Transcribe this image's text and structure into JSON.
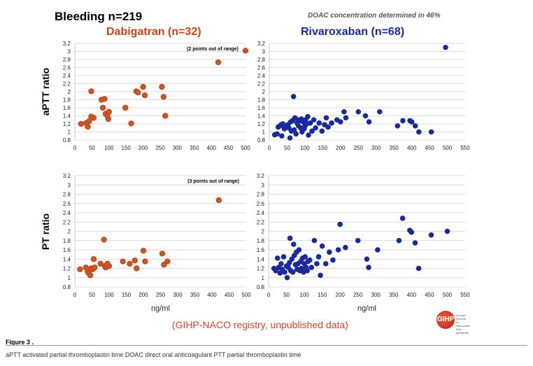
{
  "header": {
    "title": "Bleeding n=219",
    "note": "DOAC concentration determined in 46%",
    "left_title": "Dabigatran (n=32)",
    "right_title": "Rivaroxaban (n=68)"
  },
  "footer": {
    "registry": "(GIHP-NACO registry, unpublished data)",
    "figure_label": "Figure 3 .",
    "caption": "aPTT activated partial thromboplastin time DOAC direct oral anticoagulant PTT partial thromboplastin time",
    "logo_text": "GIHP",
    "logo_subtext": "Groupe d'Intérêt en Hémostase Péri-opératoire"
  },
  "colors": {
    "dabigatran": "#d9421e",
    "dabigatran_center": "#7a8a2a",
    "rivaroxaban": "#1a2a9c"
  },
  "chart_data": [
    {
      "type": "scatter",
      "panel": "dabigatran-aptt",
      "ylabel": "aPTT ratio",
      "xlabel": "",
      "xlim": [
        0,
        500
      ],
      "ylim": [
        0.8,
        3.2
      ],
      "xticks": [
        "0",
        "50",
        "100",
        "150",
        "200",
        "250",
        "300",
        "350",
        "400",
        "450",
        "500"
      ],
      "yticks": [
        "0.8",
        "1",
        "1.2",
        "1.4",
        "1.6",
        "1.8",
        "2",
        "2.2",
        "2.4",
        "2.6",
        "2.8",
        "3",
        "3.2"
      ],
      "annotation": "(2 points out of range)",
      "x": [
        18,
        33,
        38,
        42,
        48,
        55,
        48,
        78,
        82,
        87,
        90,
        95,
        98,
        100,
        148,
        165,
        180,
        185,
        200,
        205,
        255,
        260,
        265,
        420,
        500
      ],
      "y": [
        1.2,
        1.22,
        1.13,
        1.27,
        2.01,
        1.35,
        1.38,
        1.8,
        1.6,
        1.82,
        1.45,
        1.4,
        1.32,
        1.5,
        1.6,
        1.21,
        2.01,
        1.98,
        2.12,
        1.91,
        2.12,
        1.87,
        1.4,
        2.73,
        3.02
      ]
    },
    {
      "type": "scatter",
      "panel": "rivaroxaban-aptt",
      "ylabel": "",
      "xlabel": "",
      "xlim": [
        0,
        550
      ],
      "ylim": [
        0.8,
        3.2
      ],
      "xticks": [
        "0",
        "50",
        "100",
        "150",
        "200",
        "250",
        "300",
        "350",
        "400",
        "450",
        "500",
        "550"
      ],
      "yticks": [
        "0.8",
        "1",
        "1.2",
        "1.4",
        "1.6",
        "1.8",
        "2",
        "2.2",
        "2.4",
        "2.6",
        "2.8",
        "3",
        "3.2"
      ],
      "x": [
        15,
        22,
        25,
        30,
        33,
        35,
        38,
        42,
        48,
        52,
        55,
        58,
        60,
        62,
        65,
        68,
        70,
        72,
        75,
        78,
        80,
        82,
        85,
        88,
        90,
        92,
        95,
        98,
        100,
        102,
        105,
        108,
        110,
        115,
        120,
        125,
        130,
        140,
        148,
        155,
        160,
        165,
        175,
        190,
        200,
        210,
        215,
        250,
        270,
        280,
        310,
        360,
        375,
        395,
        400,
        410,
        420,
        455,
        495
      ],
      "y": [
        0.93,
        0.95,
        1.12,
        1.15,
        1.18,
        0.9,
        1.2,
        1.08,
        1.12,
        1.18,
        1.1,
        0.85,
        1.25,
        1.02,
        1.28,
        1.88,
        1.05,
        1.35,
        0.95,
        1.22,
        1.3,
        1.15,
        1.28,
        1.1,
        1.32,
        1.0,
        1.25,
        1.08,
        1.15,
        1.3,
        1.2,
        1.38,
        0.92,
        1.22,
        1.02,
        1.3,
        1.1,
        1.22,
        1.02,
        1.18,
        1.35,
        1.12,
        1.22,
        1.3,
        1.25,
        1.5,
        1.35,
        1.5,
        1.4,
        1.25,
        1.5,
        1.15,
        1.28,
        1.28,
        1.25,
        1.15,
        1.0,
        1.0,
        3.1
      ]
    },
    {
      "type": "scatter",
      "panel": "dabigatran-pt",
      "ylabel": "PT ratio",
      "xlabel": "ng/ml",
      "xlim": [
        0,
        500
      ],
      "ylim": [
        0.8,
        3.2
      ],
      "xticks": [
        "0",
        "50",
        "100",
        "150",
        "200",
        "250",
        "300",
        "350",
        "400",
        "450",
        "500"
      ],
      "yticks": [
        "0.8",
        "1",
        "1.2",
        "1.4",
        "1.6",
        "1.8",
        "2",
        "2.2",
        "2.4",
        "2.6",
        "2.8",
        "3",
        "3.2"
      ],
      "annotation": "(3 points out of range)",
      "x": [
        15,
        32,
        37,
        40,
        45,
        48,
        52,
        55,
        58,
        75,
        85,
        88,
        90,
        95,
        100,
        140,
        160,
        175,
        180,
        200,
        205,
        255,
        260,
        270,
        420
      ],
      "y": [
        1.18,
        1.22,
        1.14,
        1.1,
        1.05,
        1.2,
        1.18,
        1.4,
        1.22,
        1.3,
        1.82,
        1.25,
        1.22,
        1.3,
        1.25,
        1.35,
        1.3,
        1.37,
        1.2,
        1.58,
        1.35,
        1.52,
        1.28,
        1.35,
        2.67
      ]
    },
    {
      "type": "scatter",
      "panel": "rivaroxaban-pt",
      "ylabel": "",
      "xlabel": "ng/ml",
      "xlim": [
        0,
        550
      ],
      "ylim": [
        0.8,
        3.2
      ],
      "xticks": [
        "0",
        "50",
        "100",
        "150",
        "200",
        "250",
        "300",
        "350",
        "400",
        "450",
        "500",
        "550"
      ],
      "yticks": [
        "0.8",
        "1",
        "1.2",
        "1.4",
        "1.6",
        "1.8",
        "2",
        "2.2",
        "2.4",
        "2.6",
        "2.8",
        "3",
        "3.2"
      ],
      "x": [
        15,
        20,
        25,
        28,
        32,
        35,
        38,
        42,
        45,
        50,
        52,
        55,
        58,
        60,
        62,
        65,
        68,
        70,
        72,
        75,
        78,
        80,
        82,
        85,
        88,
        90,
        92,
        95,
        98,
        100,
        102,
        105,
        108,
        110,
        115,
        120,
        128,
        135,
        140,
        145,
        150,
        160,
        170,
        180,
        195,
        200,
        215,
        250,
        275,
        280,
        305,
        365,
        375,
        395,
        400,
        410,
        420,
        455,
        500
      ],
      "y": [
        1.2,
        1.15,
        1.42,
        1.22,
        1.1,
        1.3,
        1.18,
        1.45,
        1.12,
        1.25,
        1.0,
        1.22,
        1.32,
        1.85,
        1.15,
        1.4,
        1.12,
        1.72,
        1.48,
        1.28,
        1.55,
        1.18,
        1.3,
        1.6,
        1.15,
        1.35,
        1.2,
        1.42,
        1.12,
        1.3,
        1.45,
        1.22,
        1.15,
        1.35,
        1.38,
        1.22,
        1.8,
        1.3,
        1.45,
        1.05,
        1.68,
        1.3,
        1.55,
        1.38,
        1.6,
        2.15,
        1.65,
        1.8,
        1.4,
        1.22,
        1.6,
        1.8,
        2.28,
        2.02,
        1.98,
        1.75,
        1.2,
        1.92,
        2.0
      ]
    }
  ]
}
